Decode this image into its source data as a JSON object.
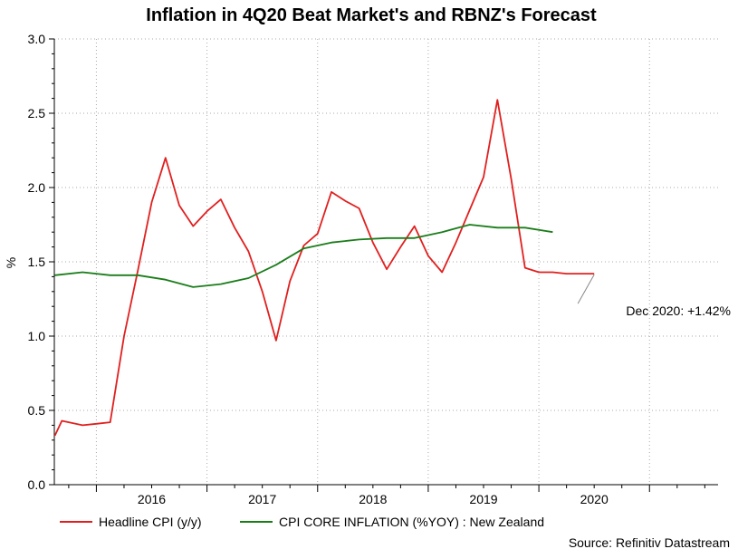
{
  "chart_data": {
    "type": "line",
    "title": "Inflation in 4Q20 Beat Market's and RBNZ's Forecast",
    "xlabel": "",
    "ylabel": "%",
    "ylim": [
      0.0,
      3.0
    ],
    "yticks": [
      0.0,
      0.5,
      1.0,
      1.5,
      2.0,
      2.5,
      3.0
    ],
    "ytick_labels": [
      "0.0",
      "0.5",
      "1.0",
      "1.5",
      "2.0",
      "2.5",
      "3.0"
    ],
    "xlim": [
      2015.62,
      2021.62
    ],
    "xticks": [
      2016,
      2017,
      2018,
      2019,
      2020
    ],
    "xtick_labels": [
      "2016",
      "2017",
      "2018",
      "2019",
      "2020"
    ],
    "grid": true,
    "legend_position": "bottom",
    "series": [
      {
        "name": "Headline CPI (y/y)",
        "color": "#e0201f",
        "x": [
          2015.625,
          2015.688,
          2015.75,
          2015.875,
          2016.0,
          2016.125,
          2016.25,
          2016.375,
          2016.5,
          2016.625,
          2016.75,
          2016.875,
          2017.0,
          2017.125,
          2017.25,
          2017.375,
          2017.5,
          2017.625,
          2017.75,
          2017.875,
          2018.0,
          2018.125,
          2018.25,
          2018.375,
          2018.5,
          2018.625,
          2018.75,
          2018.875,
          2019.0,
          2019.125,
          2019.25,
          2019.375,
          2019.5,
          2019.625,
          2019.75,
          2019.875,
          2020.0,
          2020.125,
          2020.25,
          2020.375,
          2020.5
        ],
        "values": [
          0.33,
          0.43,
          0.42,
          0.4,
          0.41,
          0.42,
          1.0,
          1.44,
          1.9,
          2.2,
          1.88,
          1.74,
          1.84,
          1.92,
          1.73,
          1.57,
          1.3,
          0.97,
          1.37,
          1.61,
          1.69,
          1.97,
          1.91,
          1.86,
          1.63,
          1.45,
          1.6,
          1.74,
          1.54,
          1.43,
          1.63,
          1.85,
          2.07,
          2.59,
          2.06,
          1.46,
          1.43,
          1.43,
          1.42,
          1.42,
          1.42
        ]
      },
      {
        "name": "CPI CORE INFLATION (%YOY) : New Zealand",
        "color": "#1a7d1a",
        "x": [
          2015.625,
          2015.875,
          2016.125,
          2016.375,
          2016.625,
          2016.875,
          2017.125,
          2017.375,
          2017.625,
          2017.875,
          2018.125,
          2018.375,
          2018.625,
          2018.875,
          2019.125,
          2019.375,
          2019.625,
          2019.875,
          2020.125
        ],
        "values": [
          1.41,
          1.43,
          1.41,
          1.41,
          1.38,
          1.33,
          1.35,
          1.39,
          1.48,
          1.59,
          1.63,
          1.65,
          1.66,
          1.66,
          1.7,
          1.75,
          1.73,
          1.73,
          1.7
        ]
      }
    ],
    "annotations": [
      {
        "text": "Dec 2020: +1.42%",
        "x": 2020.5,
        "y": 1.42
      }
    ]
  },
  "source": "Source: Refinitiv Datastream"
}
